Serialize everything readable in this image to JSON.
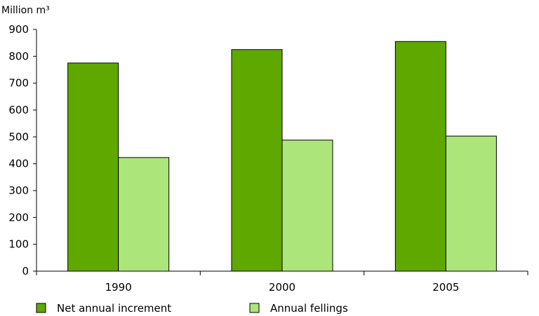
{
  "chart_data": {
    "type": "bar",
    "ylabel": "Million m³",
    "categories": [
      "1990",
      "2000",
      "2005"
    ],
    "ylim": [
      0,
      900
    ],
    "yticks": [
      0,
      100,
      200,
      300,
      400,
      500,
      600,
      700,
      800,
      900
    ],
    "grid": false,
    "legend_position": "bottom-left",
    "series": [
      {
        "name": "Net annual increment",
        "values": [
          775,
          825,
          855
        ],
        "color": "#5fa800"
      },
      {
        "name": "Annual fellings",
        "values": [
          423,
          488,
          503
        ],
        "color": "#ace67a"
      }
    ]
  }
}
